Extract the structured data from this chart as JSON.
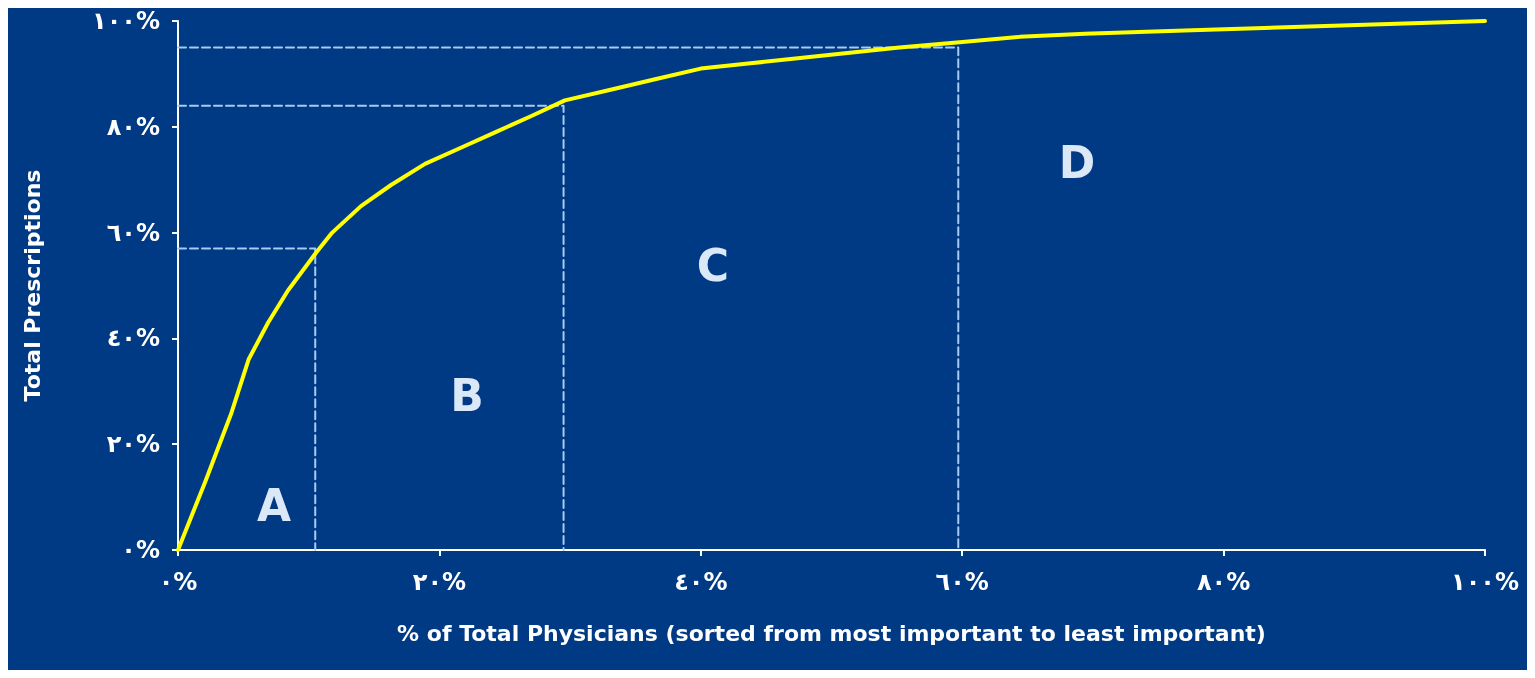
{
  "chart_data": {
    "type": "line",
    "xlabel": "% of Total Physicians (sorted from most important to least important)",
    "ylabel": "Total Prescriptions",
    "series": [
      {
        "color": "#ffff00",
        "x": [
          0,
          2.1,
          4.1,
          5.4,
          6.9,
          8.4,
          10.5,
          11.8,
          14,
          16.3,
          18.9,
          21.6,
          24.3,
          27,
          29.6,
          33.1,
          36.5,
          40,
          43.8,
          47.6,
          51.4,
          55.2,
          59.8,
          64.4,
          69.4,
          78.2,
          89.6,
          100
        ],
        "values": [
          0,
          13,
          26,
          36,
          43,
          49,
          56,
          60,
          65,
          69,
          73,
          76,
          79,
          82,
          85,
          87,
          89,
          91,
          92,
          93,
          94,
          95,
          96,
          97,
          97.6,
          98.3,
          99.2,
          100
        ]
      },
      {
        "color": "#a6caf0",
        "line_style": "dashed",
        "x": [
          0,
          10.5,
          10.5
        ],
        "values": [
          57,
          57,
          0
        ]
      },
      {
        "color": "#a6caf0",
        "line_style": "dashed",
        "x": [
          0,
          29.5,
          29.5
        ],
        "values": [
          84,
          84,
          0
        ]
      },
      {
        "color": "#a6caf0",
        "line_style": "dashed",
        "x": [
          0,
          59.7,
          59.7
        ],
        "values": [
          95,
          95,
          0
        ]
      }
    ],
    "xlim": [
      0,
      100
    ],
    "ylim": [
      0,
      100
    ],
    "xticks": [
      {
        "value": 0,
        "label": "٠%"
      },
      {
        "value": 20,
        "label": "٢٠%"
      },
      {
        "value": 40,
        "label": "٤٠%"
      },
      {
        "value": 60,
        "label": "٦٠%"
      },
      {
        "value": 80,
        "label": "٨٠%"
      },
      {
        "value": 100,
        "label": "١٠٠%"
      }
    ],
    "yticks": [
      {
        "value": 0,
        "label": "٠%"
      },
      {
        "value": 20,
        "label": "٢٠%"
      },
      {
        "value": 40,
        "label": "٤٠%"
      },
      {
        "value": 60,
        "label": "٦٠%"
      },
      {
        "value": 80,
        "label": "٨٠%"
      },
      {
        "value": 100,
        "label": "١٠٠%"
      }
    ],
    "annotations": [
      "A",
      "B",
      "C",
      "D"
    ],
    "grid": false,
    "marker": "none",
    "line_style": "solid"
  }
}
